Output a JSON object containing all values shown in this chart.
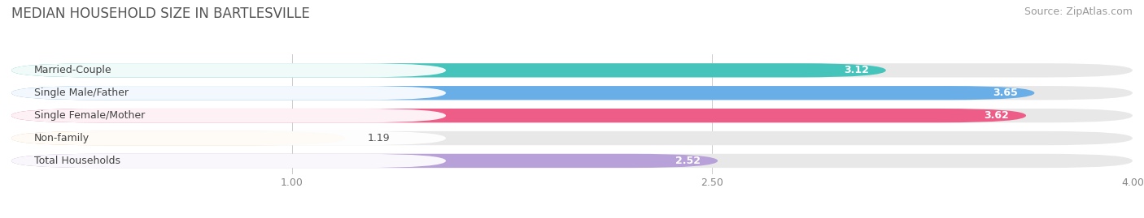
{
  "title": "MEDIAN HOUSEHOLD SIZE IN BARTLESVILLE",
  "source": "Source: ZipAtlas.com",
  "categories": [
    "Married-Couple",
    "Single Male/Father",
    "Single Female/Mother",
    "Non-family",
    "Total Households"
  ],
  "values": [
    3.12,
    3.65,
    3.62,
    1.19,
    2.52
  ],
  "bar_colors": [
    "#45C4BC",
    "#6AAEE8",
    "#EE5D87",
    "#F5C897",
    "#B8A0D8"
  ],
  "bar_bg_color": "#E8E8E8",
  "label_bg_color": "#FFFFFF",
  "xlim": [
    0,
    4.0
  ],
  "xticks": [
    1.0,
    2.5,
    4.0
  ],
  "title_fontsize": 12,
  "source_fontsize": 9,
  "label_fontsize": 9,
  "value_fontsize": 9,
  "background_color": "#FFFFFF",
  "bar_height": 0.62
}
